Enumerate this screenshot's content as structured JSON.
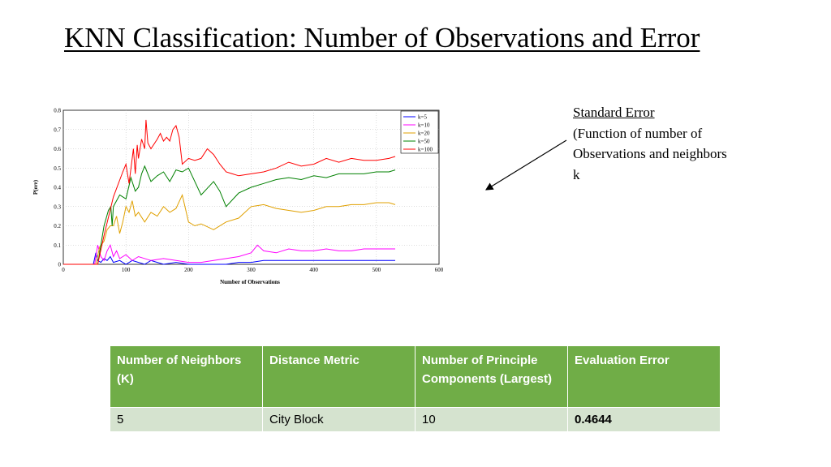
{
  "slide": {
    "title": "KNN Classification:  Number of Observations and Error"
  },
  "annotation": {
    "heading": "Standard Error",
    "body": "(Function of number of Observations and neighbors k"
  },
  "chart_data": {
    "type": "line",
    "xlabel": "Number of Observations",
    "ylabel": "P(err)",
    "xlim": [
      0,
      600
    ],
    "ylim": [
      0,
      0.8
    ],
    "xticks": [
      0,
      100,
      200,
      300,
      400,
      500,
      600
    ],
    "yticks": [
      0,
      0.1,
      0.2,
      0.3,
      0.4,
      0.5,
      0.6,
      0.7,
      0.8
    ],
    "grid": true,
    "legend_position": "top-right",
    "series": [
      {
        "name": "k=5",
        "color": "#0000ff",
        "x": [
          0,
          48,
          52,
          55,
          60,
          65,
          70,
          75,
          80,
          90,
          100,
          110,
          120,
          130,
          140,
          150,
          160,
          180,
          200,
          220,
          240,
          260,
          280,
          300,
          320,
          340,
          360,
          380,
          400,
          420,
          440,
          460,
          480,
          500,
          520,
          530
        ],
        "y": [
          0,
          0,
          0.06,
          0.02,
          0.01,
          0.03,
          0.02,
          0.04,
          0.01,
          0.02,
          0.0,
          0.02,
          0.01,
          0.0,
          0.02,
          0.01,
          0.0,
          0.01,
          0.0,
          0.0,
          0.0,
          0.0,
          0.01,
          0.01,
          0.02,
          0.02,
          0.02,
          0.02,
          0.02,
          0.02,
          0.02,
          0.02,
          0.02,
          0.02,
          0.02,
          0.02
        ]
      },
      {
        "name": "k=10",
        "color": "#ff00ff",
        "x": [
          0,
          50,
          55,
          60,
          65,
          70,
          75,
          80,
          85,
          90,
          100,
          110,
          120,
          140,
          160,
          180,
          200,
          220,
          240,
          260,
          280,
          300,
          310,
          320,
          340,
          360,
          380,
          400,
          420,
          440,
          460,
          480,
          500,
          520,
          530
        ],
        "y": [
          0,
          0,
          0.1,
          0.04,
          0.02,
          0.07,
          0.1,
          0.04,
          0.07,
          0.03,
          0.05,
          0.02,
          0.04,
          0.02,
          0.03,
          0.02,
          0.01,
          0.01,
          0.02,
          0.03,
          0.04,
          0.06,
          0.1,
          0.07,
          0.06,
          0.08,
          0.07,
          0.07,
          0.08,
          0.07,
          0.07,
          0.08,
          0.08,
          0.08,
          0.08
        ]
      },
      {
        "name": "k=20",
        "color": "#e0a000",
        "x": [
          0,
          52,
          58,
          65,
          70,
          75,
          80,
          85,
          90,
          95,
          100,
          105,
          110,
          115,
          120,
          130,
          140,
          150,
          160,
          170,
          180,
          190,
          200,
          210,
          220,
          240,
          260,
          280,
          300,
          320,
          340,
          360,
          380,
          400,
          420,
          440,
          460,
          480,
          500,
          520,
          530
        ],
        "y": [
          0,
          0,
          0.09,
          0.12,
          0.18,
          0.2,
          0.2,
          0.25,
          0.16,
          0.22,
          0.3,
          0.27,
          0.33,
          0.25,
          0.27,
          0.22,
          0.27,
          0.25,
          0.3,
          0.27,
          0.29,
          0.36,
          0.22,
          0.2,
          0.21,
          0.18,
          0.22,
          0.24,
          0.3,
          0.31,
          0.29,
          0.28,
          0.27,
          0.28,
          0.3,
          0.3,
          0.31,
          0.31,
          0.32,
          0.32,
          0.31
        ]
      },
      {
        "name": "k=50",
        "color": "#008000",
        "x": [
          0,
          55,
          65,
          72,
          76,
          78,
          80,
          90,
          100,
          108,
          115,
          120,
          125,
          130,
          140,
          150,
          160,
          170,
          180,
          190,
          200,
          220,
          240,
          250,
          260,
          280,
          300,
          320,
          340,
          360,
          380,
          400,
          420,
          440,
          460,
          480,
          500,
          520,
          530
        ],
        "y": [
          0,
          0,
          0.2,
          0.28,
          0.3,
          0.2,
          0.3,
          0.36,
          0.34,
          0.45,
          0.38,
          0.4,
          0.47,
          0.51,
          0.43,
          0.46,
          0.48,
          0.43,
          0.49,
          0.48,
          0.5,
          0.36,
          0.43,
          0.38,
          0.3,
          0.37,
          0.4,
          0.42,
          0.44,
          0.45,
          0.44,
          0.46,
          0.45,
          0.47,
          0.47,
          0.47,
          0.48,
          0.48,
          0.49
        ]
      },
      {
        "name": "k=100",
        "color": "#ff0000",
        "x": [
          0,
          55,
          65,
          80,
          95,
          100,
          105,
          110,
          112,
          115,
          118,
          120,
          125,
          130,
          132,
          135,
          140,
          150,
          155,
          160,
          165,
          170,
          175,
          180,
          185,
          190,
          200,
          210,
          220,
          230,
          240,
          250,
          260,
          270,
          280,
          300,
          320,
          340,
          360,
          380,
          400,
          420,
          440,
          460,
          480,
          500,
          520,
          530
        ],
        "y": [
          0,
          0,
          0.15,
          0.35,
          0.48,
          0.52,
          0.42,
          0.55,
          0.6,
          0.47,
          0.62,
          0.55,
          0.65,
          0.6,
          0.75,
          0.63,
          0.6,
          0.65,
          0.68,
          0.64,
          0.66,
          0.64,
          0.7,
          0.72,
          0.66,
          0.52,
          0.55,
          0.54,
          0.55,
          0.6,
          0.57,
          0.52,
          0.48,
          0.47,
          0.46,
          0.47,
          0.48,
          0.5,
          0.53,
          0.51,
          0.52,
          0.55,
          0.53,
          0.55,
          0.54,
          0.54,
          0.55,
          0.56
        ]
      }
    ]
  },
  "table": {
    "headers": [
      "Number of Neighbors (K)",
      "Distance Metric",
      "Number of Principle Components (Largest)",
      "Evaluation Error"
    ],
    "rows": [
      [
        "5",
        "City Block",
        "10",
        "0.4644"
      ]
    ]
  }
}
